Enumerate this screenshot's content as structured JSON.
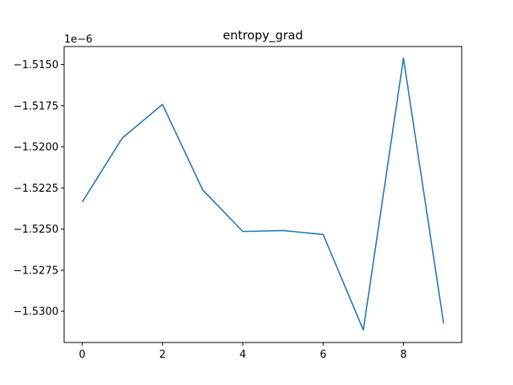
{
  "chart_data": {
    "type": "line",
    "title": "entropy_grad",
    "xlabel": "",
    "ylabel": "",
    "offset_text": "1e−6",
    "x": [
      0,
      1,
      2,
      3,
      4,
      5,
      6,
      7,
      8,
      9
    ],
    "series": [
      {
        "values": [
          -1.52336,
          -1.51946,
          -1.51742,
          -1.52262,
          -1.52515,
          -1.52509,
          -1.52533,
          -1.53114,
          -1.51461,
          -1.53074
        ],
        "color": "#1f77b4"
      }
    ],
    "xlim": [
      -0.45,
      9.45
    ],
    "ylim": [
      -1.5319,
      -1.5139
    ],
    "xticks": [
      0,
      2,
      4,
      6,
      8
    ],
    "xtick_labels": [
      "0",
      "2",
      "4",
      "6",
      "8"
    ],
    "yticks": [
      -1.515,
      -1.5175,
      -1.52,
      -1.5225,
      -1.525,
      -1.5275,
      -1.53
    ],
    "ytick_labels": [
      "−1.5150",
      "−1.5175",
      "−1.5200",
      "−1.5225",
      "−1.5250",
      "−1.5275",
      "−1.5300"
    ],
    "grid": false,
    "legend": "none"
  }
}
